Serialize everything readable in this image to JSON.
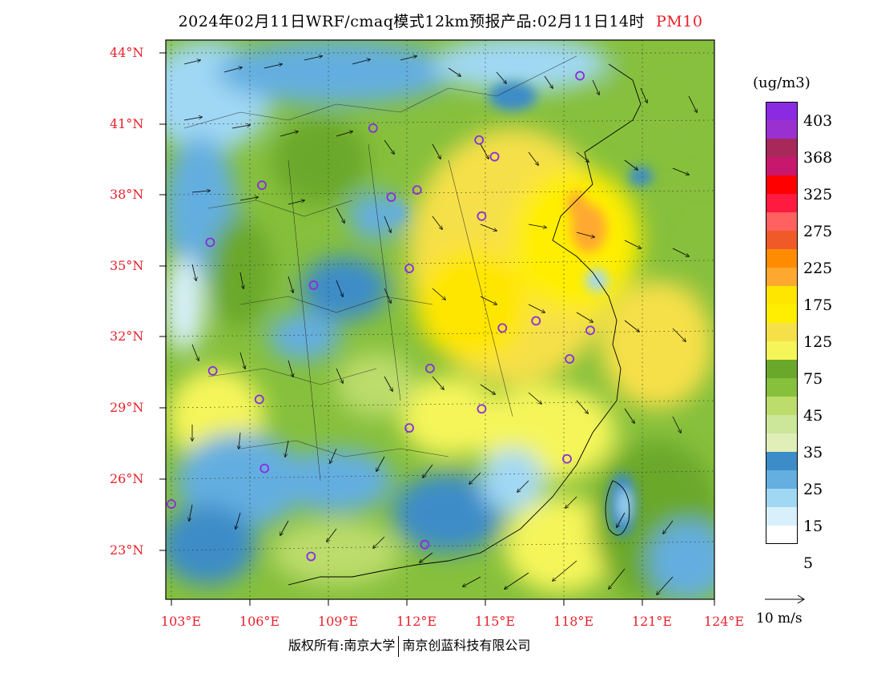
{
  "title": {
    "main": "2024年02月11日WRF/cmaq模式12km预报产品:02月11日14时",
    "pollutant": "PM10"
  },
  "axes": {
    "lat_labels": [
      "44°N",
      "41°N",
      "38°N",
      "35°N",
      "32°N",
      "29°N",
      "26°N",
      "23°N"
    ],
    "lon_labels": [
      "103°E",
      "106°E",
      "109°E",
      "112°E",
      "115°E",
      "118°E",
      "121°E",
      "124°E"
    ],
    "lat_range": [
      21,
      44.5
    ],
    "lon_range": [
      103,
      124
    ]
  },
  "legend": {
    "unit": "(ug/m3)",
    "labels": [
      "403",
      "368",
      "325",
      "275",
      "225",
      "175",
      "125",
      "75",
      "45",
      "35",
      "25",
      "15",
      "5"
    ],
    "colors": [
      "#8a2be2",
      "#9b30d0",
      "#a8285a",
      "#c8186e",
      "#ff0000",
      "#ff1a40",
      "#ff6060",
      "#f05a28",
      "#ff8c00",
      "#ffa830",
      "#ffe600",
      "#ffee00",
      "#f6e04a",
      "#f5f55a",
      "#6aa82c",
      "#86c03c",
      "#bcdc6c",
      "#cce69a",
      "#e0eeb8",
      "#3c8cc8",
      "#64aee0",
      "#a0d8f4",
      "#d8f0fc",
      "#ffffff"
    ]
  },
  "wind_reference": "10 m/s",
  "copyright": {
    "left": "版权所有:南京大学",
    "right": "南京创蓝科技有限公司"
  },
  "stations": [
    {
      "lon": 118.8,
      "lat": 43.0
    },
    {
      "lon": 110.8,
      "lat": 40.8
    },
    {
      "lon": 114.9,
      "lat": 40.3
    },
    {
      "lon": 115.5,
      "lat": 39.6
    },
    {
      "lon": 106.5,
      "lat": 38.4
    },
    {
      "lon": 111.5,
      "lat": 37.9
    },
    {
      "lon": 112.5,
      "lat": 38.2
    },
    {
      "lon": 115.0,
      "lat": 37.1
    },
    {
      "lon": 104.5,
      "lat": 36.0
    },
    {
      "lon": 112.2,
      "lat": 34.9
    },
    {
      "lon": 108.5,
      "lat": 34.2
    },
    {
      "lon": 115.8,
      "lat": 32.4
    },
    {
      "lon": 117.1,
      "lat": 32.7
    },
    {
      "lon": 119.2,
      "lat": 32.3
    },
    {
      "lon": 118.4,
      "lat": 31.1
    },
    {
      "lon": 104.6,
      "lat": 30.6
    },
    {
      "lon": 113.0,
      "lat": 30.7
    },
    {
      "lon": 106.4,
      "lat": 29.4
    },
    {
      "lon": 115.0,
      "lat": 29.0
    },
    {
      "lon": 112.2,
      "lat": 28.2
    },
    {
      "lon": 106.6,
      "lat": 26.5
    },
    {
      "lon": 118.3,
      "lat": 26.9
    },
    {
      "lon": 103.0,
      "lat": 25.0
    },
    {
      "lon": 112.8,
      "lat": 23.3
    },
    {
      "lon": 108.4,
      "lat": 22.8
    }
  ]
}
